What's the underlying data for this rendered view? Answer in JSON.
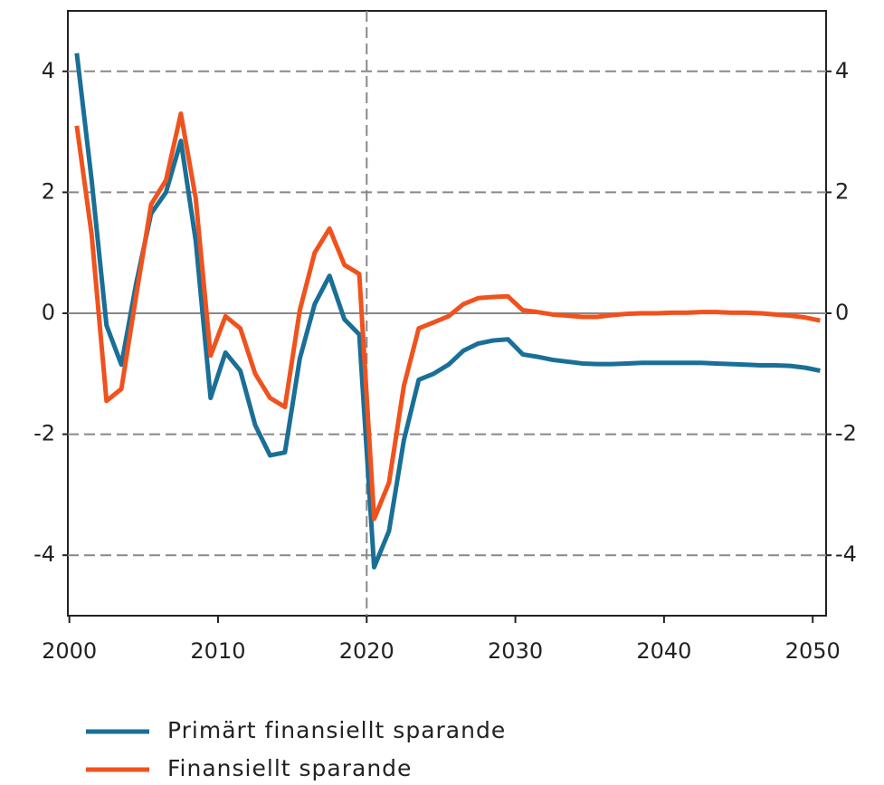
{
  "chart_data": {
    "type": "line",
    "x": [
      2000.5,
      2001.5,
      2002.5,
      2003.5,
      2004.5,
      2005.5,
      2006.5,
      2007.5,
      2008.5,
      2009.5,
      2010.5,
      2011.5,
      2012.5,
      2013.5,
      2014.5,
      2015.5,
      2016.5,
      2017.5,
      2018.5,
      2019.5,
      2020.5,
      2021.5,
      2022.5,
      2023.5,
      2024.5,
      2025.5,
      2026.5,
      2027.5,
      2028.5,
      2029.5,
      2030.5,
      2031.5,
      2032.5,
      2033.5,
      2034.5,
      2035.5,
      2036.5,
      2037.5,
      2038.5,
      2039.5,
      2040.5,
      2041.5,
      2042.5,
      2043.5,
      2044.5,
      2045.5,
      2046.5,
      2047.5,
      2048.5,
      2049.5,
      2050.5
    ],
    "series": [
      {
        "name": "Primärt finansiellt sparande",
        "color": "#1a6f96",
        "values": [
          4.3,
          2.2,
          -0.2,
          -0.85,
          0.5,
          1.65,
          2.0,
          2.85,
          1.2,
          -1.4,
          -0.65,
          -0.95,
          -1.85,
          -2.35,
          -2.3,
          -0.75,
          0.15,
          0.62,
          -0.1,
          -0.35,
          -4.2,
          -3.6,
          -2.1,
          -1.1,
          -1.0,
          -0.85,
          -0.62,
          -0.5,
          -0.45,
          -0.43,
          -0.68,
          -0.72,
          -0.77,
          -0.8,
          -0.83,
          -0.84,
          -0.84,
          -0.83,
          -0.82,
          -0.82,
          -0.82,
          -0.82,
          -0.82,
          -0.83,
          -0.84,
          -0.85,
          -0.86,
          -0.86,
          -0.87,
          -0.9,
          -0.95
        ]
      },
      {
        "name": "Finansiellt sparande",
        "color": "#f0521e",
        "values": [
          3.1,
          1.3,
          -1.45,
          -1.25,
          0.3,
          1.8,
          2.2,
          3.3,
          1.9,
          -0.7,
          -0.05,
          -0.25,
          -1.0,
          -1.4,
          -1.55,
          0.05,
          1.0,
          1.4,
          0.8,
          0.65,
          -3.4,
          -2.8,
          -1.2,
          -0.25,
          -0.15,
          -0.05,
          0.15,
          0.25,
          0.27,
          0.28,
          0.05,
          0.02,
          -0.02,
          -0.04,
          -0.06,
          -0.06,
          -0.03,
          -0.01,
          0,
          0,
          0.01,
          0.01,
          0.02,
          0.02,
          0.01,
          0.01,
          0,
          -0.02,
          -0.04,
          -0.07,
          -0.12
        ]
      }
    ],
    "xlim": [
      1999.9,
      2050.9
    ],
    "xticks": [
      2000,
      2010,
      2020,
      2030,
      2040,
      2050
    ],
    "ylim": [
      -5,
      5
    ],
    "yticks": [
      -4,
      -2,
      0,
      2,
      4
    ],
    "reference_x": 2020,
    "grid": true,
    "legend": "bottom"
  }
}
